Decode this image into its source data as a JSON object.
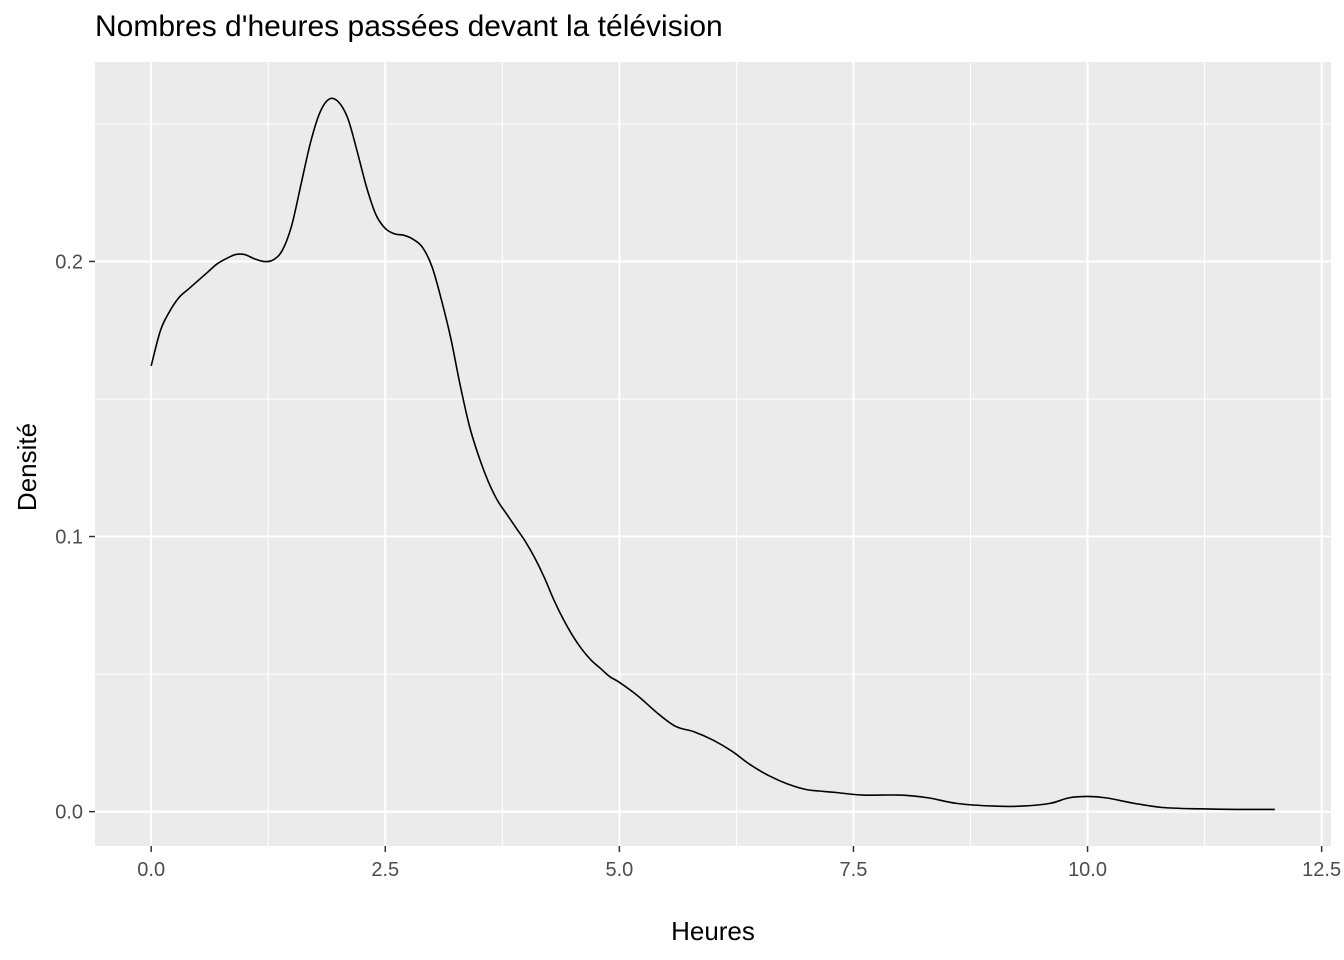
{
  "chart_data": {
    "type": "line",
    "title": "Nombres d'heures passées devant la télévision",
    "xlabel": "Heures",
    "ylabel": "Densité",
    "xlim": [
      -0.6,
      12.6
    ],
    "ylim": [
      -0.0125,
      0.2725
    ],
    "x_ticks": [
      0,
      2.5,
      5,
      7.5,
      10,
      12.5
    ],
    "x_tick_labels": [
      "0.0",
      "2.5",
      "5.0",
      "7.5",
      "10.0",
      "12.5"
    ],
    "y_ticks": [
      0,
      0.1,
      0.2
    ],
    "y_tick_labels": [
      "0.0",
      "0.1",
      "0.2"
    ],
    "grid": true,
    "panel_background": "#EBEBEB",
    "grid_color": "#FFFFFF",
    "line_color": "#000000",
    "series": [
      {
        "x": [
          0,
          0.1,
          0.2,
          0.3,
          0.4,
          0.5,
          0.6,
          0.7,
          0.8,
          0.9,
          1.0,
          1.1,
          1.2,
          1.3,
          1.4,
          1.5,
          1.6,
          1.7,
          1.8,
          1.9,
          2.0,
          2.1,
          2.2,
          2.3,
          2.4,
          2.5,
          2.6,
          2.7,
          2.8,
          2.9,
          3.0,
          3.1,
          3.2,
          3.3,
          3.4,
          3.5,
          3.6,
          3.7,
          3.8,
          3.9,
          4.0,
          4.1,
          4.2,
          4.3,
          4.4,
          4.5,
          4.6,
          4.7,
          4.8,
          4.9,
          5.0,
          5.2,
          5.4,
          5.6,
          5.8,
          6.0,
          6.2,
          6.4,
          6.6,
          6.8,
          7.0,
          7.3,
          7.6,
          8.0,
          8.3,
          8.6,
          9.0,
          9.3,
          9.6,
          9.8,
          10.0,
          10.2,
          10.5,
          10.8,
          11.2,
          11.6,
          12.0
        ],
        "y": [
          0.162,
          0.175,
          0.182,
          0.187,
          0.19,
          0.193,
          0.196,
          0.199,
          0.201,
          0.2025,
          0.2025,
          0.201,
          0.2,
          0.2005,
          0.204,
          0.213,
          0.228,
          0.243,
          0.254,
          0.259,
          0.258,
          0.252,
          0.24,
          0.227,
          0.217,
          0.212,
          0.21,
          0.2095,
          0.208,
          0.205,
          0.198,
          0.186,
          0.172,
          0.155,
          0.14,
          0.129,
          0.12,
          0.113,
          0.108,
          0.103,
          0.098,
          0.092,
          0.085,
          0.077,
          0.07,
          0.064,
          0.059,
          0.055,
          0.052,
          0.049,
          0.047,
          0.042,
          0.036,
          0.031,
          0.029,
          0.026,
          0.022,
          0.017,
          0.013,
          0.01,
          0.008,
          0.007,
          0.006,
          0.006,
          0.005,
          0.003,
          0.002,
          0.002,
          0.003,
          0.005,
          0.0055,
          0.005,
          0.003,
          0.0015,
          0.001,
          0.0008,
          0.0008
        ]
      }
    ]
  }
}
